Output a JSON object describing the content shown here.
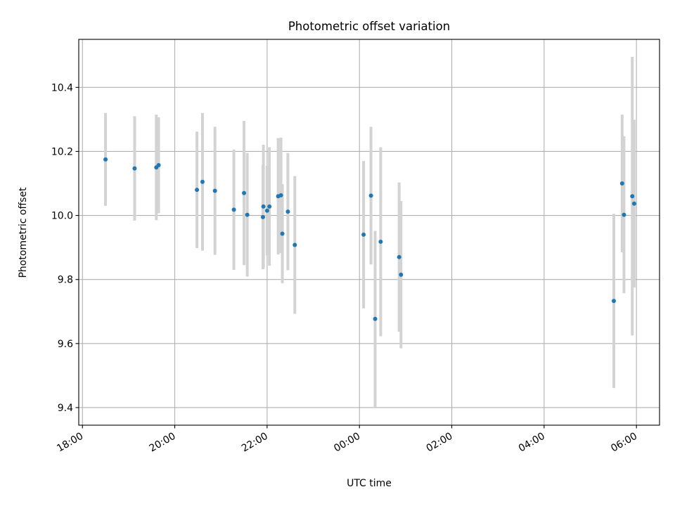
{
  "chart_data": {
    "type": "scatter",
    "title": "Photometric offset variation",
    "xlabel": "UTC time",
    "ylabel": "Photometric offset",
    "xlim_hours": [
      17.92,
      30.5
    ],
    "ylim": [
      9.345,
      10.55
    ],
    "grid": true,
    "x_ticks": [
      {
        "hour": 18,
        "label": "18:00"
      },
      {
        "hour": 20,
        "label": "20:00"
      },
      {
        "hour": 22,
        "label": "22:00"
      },
      {
        "hour": 24,
        "label": "00:00"
      },
      {
        "hour": 26,
        "label": "02:00"
      },
      {
        "hour": 28,
        "label": "04:00"
      },
      {
        "hour": 30,
        "label": "06:00"
      }
    ],
    "y_ticks": [
      {
        "value": 9.4,
        "label": "9.4"
      },
      {
        "value": 9.6,
        "label": "9.6"
      },
      {
        "value": 9.8,
        "label": "9.8"
      },
      {
        "value": 10.0,
        "label": "10.0"
      },
      {
        "value": 10.2,
        "label": "10.2"
      },
      {
        "value": 10.4,
        "label": "10.4"
      }
    ],
    "marker_color": "#1f77b4",
    "errorbar_color": "#d3d3d3",
    "points": [
      {
        "x": 18.5,
        "y": 10.175,
        "err": 0.145
      },
      {
        "x": 19.13,
        "y": 10.147,
        "err": 0.163
      },
      {
        "x": 19.6,
        "y": 10.15,
        "err": 0.165
      },
      {
        "x": 19.65,
        "y": 10.157,
        "err": 0.15
      },
      {
        "x": 20.48,
        "y": 10.08,
        "err": 0.182
      },
      {
        "x": 20.6,
        "y": 10.105,
        "err": 0.215
      },
      {
        "x": 20.87,
        "y": 10.077,
        "err": 0.2
      },
      {
        "x": 21.28,
        "y": 10.018,
        "err": 0.188
      },
      {
        "x": 21.5,
        "y": 10.07,
        "err": 0.225
      },
      {
        "x": 21.57,
        "y": 10.002,
        "err": 0.193
      },
      {
        "x": 21.91,
        "y": 9.995,
        "err": 0.163
      },
      {
        "x": 21.92,
        "y": 10.028,
        "err": 0.193
      },
      {
        "x": 22.0,
        "y": 10.015,
        "err": 0.14
      },
      {
        "x": 22.05,
        "y": 10.028,
        "err": 0.185
      },
      {
        "x": 22.24,
        "y": 10.06,
        "err": 0.182
      },
      {
        "x": 22.3,
        "y": 10.063,
        "err": 0.18
      },
      {
        "x": 22.33,
        "y": 9.943,
        "err": 0.155
      },
      {
        "x": 22.45,
        "y": 10.012,
        "err": 0.183
      },
      {
        "x": 22.6,
        "y": 9.908,
        "err": 0.215
      },
      {
        "x": 24.09,
        "y": 9.94,
        "err": 0.23
      },
      {
        "x": 24.25,
        "y": 10.062,
        "err": 0.215
      },
      {
        "x": 24.34,
        "y": 9.677,
        "err": 0.275
      },
      {
        "x": 24.46,
        "y": 9.918,
        "err": 0.295
      },
      {
        "x": 24.86,
        "y": 9.87,
        "err": 0.233
      },
      {
        "x": 24.9,
        "y": 9.815,
        "err": 0.23
      },
      {
        "x": 29.51,
        "y": 9.733,
        "err": 0.272
      },
      {
        "x": 29.69,
        "y": 10.1,
        "err": 0.215
      },
      {
        "x": 29.73,
        "y": 10.002,
        "err": 0.245
      },
      {
        "x": 29.91,
        "y": 10.06,
        "err": 0.435
      },
      {
        "x": 29.95,
        "y": 10.037,
        "err": 0.262
      }
    ]
  }
}
